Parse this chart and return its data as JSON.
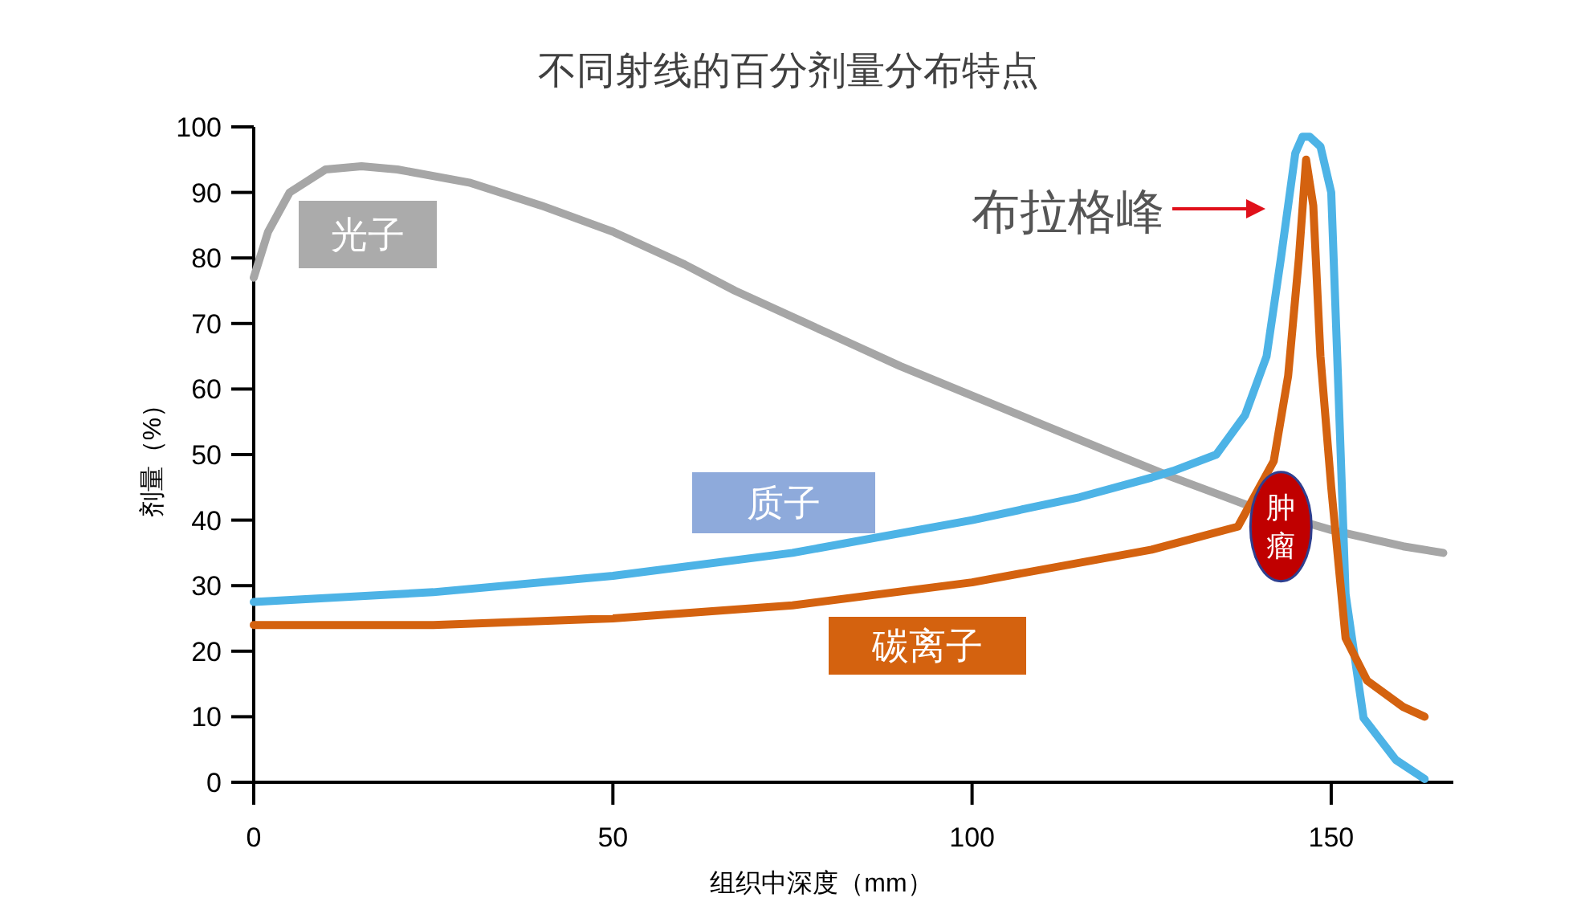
{
  "chart_data": {
    "type": "line",
    "title": "不同射线的百分剂量分布特点",
    "xlabel": "组织中深度（mm）",
    "ylabel": "剂量（%）",
    "xlim": [
      0,
      167
    ],
    "ylim": [
      0,
      100
    ],
    "xticks": [
      0,
      50,
      100,
      150
    ],
    "yticks": [
      0,
      10,
      20,
      30,
      40,
      50,
      60,
      70,
      80,
      90,
      100
    ],
    "grid": false,
    "legend": false,
    "marker": "none",
    "line_style": "solid",
    "series": [
      {
        "name": "光子",
        "color": "#a6a6a6",
        "x": [
          0,
          2,
          5,
          10,
          15,
          20,
          30,
          40,
          50,
          60,
          67,
          80,
          90,
          100,
          110,
          120,
          128,
          139,
          150,
          160,
          165.6
        ],
        "values": [
          77,
          84,
          90,
          93.5,
          94,
          93.5,
          91.5,
          88,
          84,
          79,
          75,
          68.5,
          63.5,
          59,
          54.5,
          50,
          46.5,
          42,
          38.5,
          36,
          35
        ]
      },
      {
        "name": "质子",
        "color": "#4db3e6",
        "x": [
          0,
          25,
          50,
          75,
          100,
          115,
          125,
          128,
          134,
          138,
          141,
          143,
          145,
          146,
          147,
          148.5,
          150,
          151,
          152,
          154.5,
          159,
          163
        ],
        "values": [
          27.5,
          29,
          31.5,
          35,
          40,
          43.5,
          46.5,
          47.5,
          50,
          56,
          65,
          80,
          96,
          98.5,
          98.5,
          97,
          90,
          60,
          28.7,
          9.8,
          3.4,
          0.5
        ]
      },
      {
        "name": "碳离子",
        "color": "#d4620f",
        "x": [
          0,
          25,
          50,
          75,
          100,
          125,
          137,
          142,
          144,
          145.5,
          146.5,
          147.5,
          148.5,
          150,
          152,
          155,
          160,
          163
        ],
        "values": [
          24,
          24,
          25,
          27,
          30.5,
          35.5,
          39,
          49,
          62,
          80,
          95,
          88,
          65,
          45,
          22,
          15.5,
          11.5,
          10
        ]
      }
    ],
    "annotations": [
      "布拉格峰",
      {
        "text": "肿瘤",
        "x": 143,
        "y": 39
      }
    ]
  }
}
